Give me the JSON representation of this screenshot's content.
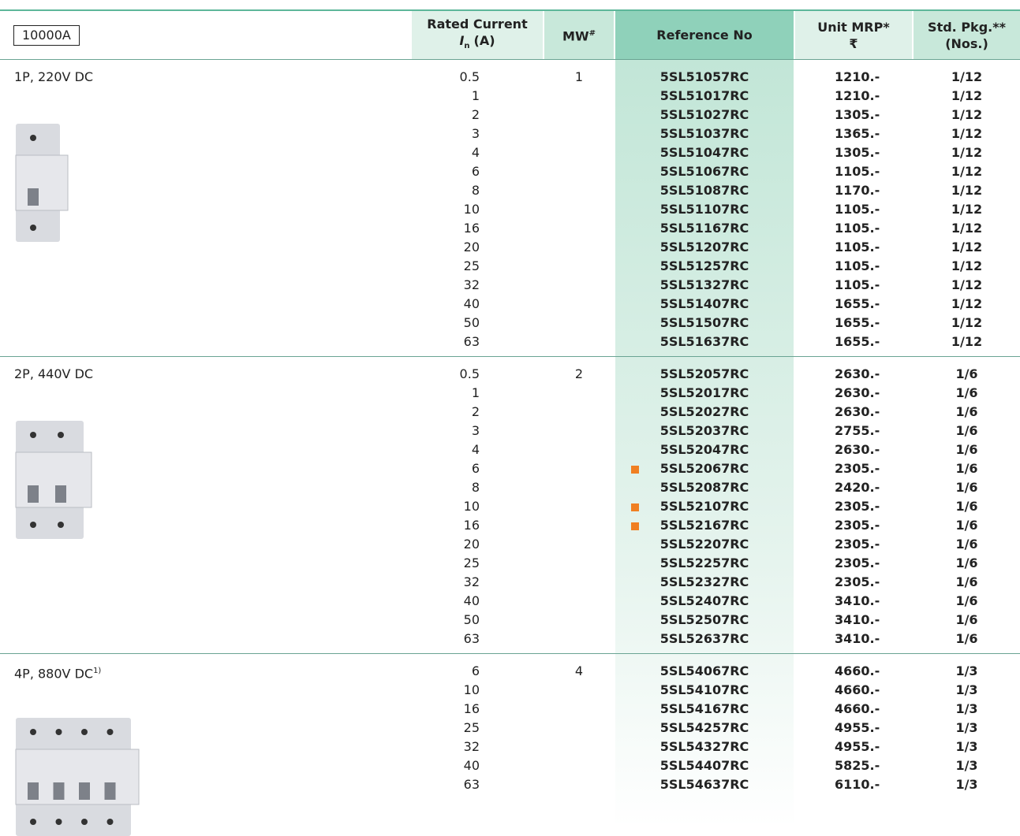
{
  "header": {
    "badge": "10000A",
    "rated_current": {
      "line1": "Rated Current",
      "symbol": "I",
      "subscript": "n",
      "unit": "(A)"
    },
    "mw": {
      "text": "MW",
      "sup": "#"
    },
    "reference": "Reference No",
    "mrp": {
      "line1": "Unit MRP*",
      "line2": "₹"
    },
    "pkg": {
      "line1": "Std. Pkg.**",
      "line2": "(Nos.)"
    }
  },
  "sections": [
    {
      "label": "1P, 220V DC",
      "mw": 1,
      "rows": [
        {
          "current": 0.5,
          "reference": "5SL51057RC",
          "price": "1210.-",
          "pkg": "1/12"
        },
        {
          "current": 1,
          "reference": "5SL51017RC",
          "price": "1210.-",
          "pkg": "1/12"
        },
        {
          "current": 2,
          "reference": "5SL51027RC",
          "price": "1305.-",
          "pkg": "1/12"
        },
        {
          "current": 3,
          "reference": "5SL51037RC",
          "price": "1365.-",
          "pkg": "1/12"
        },
        {
          "current": 4,
          "reference": "5SL51047RC",
          "price": "1305.-",
          "pkg": "1/12"
        },
        {
          "current": 6,
          "reference": "5SL51067RC",
          "price": "1105.-",
          "pkg": "1/12"
        },
        {
          "current": 8,
          "reference": "5SL51087RC",
          "price": "1170.-",
          "pkg": "1/12"
        },
        {
          "current": 10,
          "reference": "5SL51107RC",
          "price": "1105.-",
          "pkg": "1/12"
        },
        {
          "current": 16,
          "reference": "5SL51167RC",
          "price": "1105.-",
          "pkg": "1/12"
        },
        {
          "current": 20,
          "reference": "5SL51207RC",
          "price": "1105.-",
          "pkg": "1/12"
        },
        {
          "current": 25,
          "reference": "5SL51257RC",
          "price": "1105.-",
          "pkg": "1/12"
        },
        {
          "current": 32,
          "reference": "5SL51327RC",
          "price": "1105.-",
          "pkg": "1/12"
        },
        {
          "current": 40,
          "reference": "5SL51407RC",
          "price": "1655.-",
          "pkg": "1/12"
        },
        {
          "current": 50,
          "reference": "5SL51507RC",
          "price": "1655.-",
          "pkg": "1/12"
        },
        {
          "current": 63,
          "reference": "5SL51637RC",
          "price": "1655.-",
          "pkg": "1/12"
        }
      ]
    },
    {
      "label": "2P, 440V DC",
      "mw": 2,
      "rows": [
        {
          "current": 0.5,
          "reference": "5SL52057RC",
          "price": "2630.-",
          "pkg": "1/6"
        },
        {
          "current": 1,
          "reference": "5SL52017RC",
          "price": "2630.-",
          "pkg": "1/6"
        },
        {
          "current": 2,
          "reference": "5SL52027RC",
          "price": "2630.-",
          "pkg": "1/6"
        },
        {
          "current": 3,
          "reference": "5SL52037RC",
          "price": "2755.-",
          "pkg": "1/6"
        },
        {
          "current": 4,
          "reference": "5SL52047RC",
          "price": "2630.-",
          "pkg": "1/6"
        },
        {
          "current": 6,
          "reference": "5SL52067RC",
          "price": "2305.-",
          "pkg": "1/6",
          "marked": true
        },
        {
          "current": 8,
          "reference": "5SL52087RC",
          "price": "2420.-",
          "pkg": "1/6"
        },
        {
          "current": 10,
          "reference": "5SL52107RC",
          "price": "2305.-",
          "pkg": "1/6",
          "marked": true
        },
        {
          "current": 16,
          "reference": "5SL52167RC",
          "price": "2305.-",
          "pkg": "1/6",
          "marked": true
        },
        {
          "current": 20,
          "reference": "5SL52207RC",
          "price": "2305.-",
          "pkg": "1/6"
        },
        {
          "current": 25,
          "reference": "5SL52257RC",
          "price": "2305.-",
          "pkg": "1/6"
        },
        {
          "current": 32,
          "reference": "5SL52327RC",
          "price": "2305.-",
          "pkg": "1/6"
        },
        {
          "current": 40,
          "reference": "5SL52407RC",
          "price": "3410.-",
          "pkg": "1/6"
        },
        {
          "current": 50,
          "reference": "5SL52507RC",
          "price": "3410.-",
          "pkg": "1/6"
        },
        {
          "current": 63,
          "reference": "5SL52637RC",
          "price": "3410.-",
          "pkg": "1/6"
        }
      ]
    },
    {
      "label": "4P, 880V DC",
      "label_sup": "1)",
      "mw": 4,
      "rows": [
        {
          "current": 6,
          "reference": "5SL54067RC",
          "price": "4660.-",
          "pkg": "1/3"
        },
        {
          "current": 10,
          "reference": "5SL54107RC",
          "price": "4660.-",
          "pkg": "1/3"
        },
        {
          "current": 16,
          "reference": "5SL54167RC",
          "price": "4660.-",
          "pkg": "1/3"
        },
        {
          "current": 25,
          "reference": "5SL54257RC",
          "price": "4955.-",
          "pkg": "1/3"
        },
        {
          "current": 32,
          "reference": "5SL54327RC",
          "price": "4955.-",
          "pkg": "1/3"
        },
        {
          "current": 40,
          "reference": "5SL54407RC",
          "price": "5825.-",
          "pkg": "1/3"
        },
        {
          "current": 63,
          "reference": "5SL54637RC",
          "price": "6110.-",
          "pkg": "1/3"
        }
      ]
    }
  ]
}
